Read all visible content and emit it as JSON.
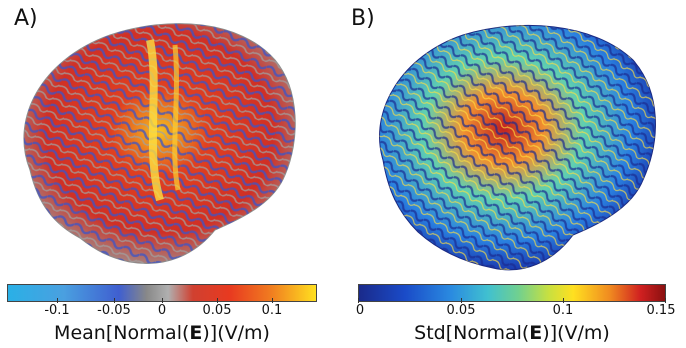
{
  "panels": [
    {
      "letter": "A)",
      "colorbar": {
        "ticks": [
          "-0.1",
          "-0.05",
          "0",
          "0.05",
          "0.1"
        ],
        "title_prefix": "Mean[Normal(",
        "title_bold": "E",
        "title_suffix": ")](V/m)"
      }
    },
    {
      "letter": "B)",
      "colorbar": {
        "ticks": [
          "0",
          "0.05",
          "0.1",
          "0.15"
        ],
        "title_prefix": "Std[Normal(",
        "title_bold": "E",
        "title_suffix": ")](V/m)"
      }
    }
  ]
}
